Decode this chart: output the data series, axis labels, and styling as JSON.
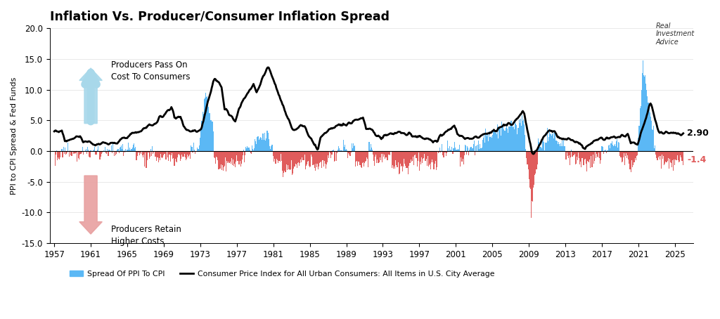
{
  "title": "Inflation Vs. Producer/Consumer Inflation Spread",
  "ylabel": "PPI to CPI Spread & Fed Funds",
  "xlim_start": 1957,
  "xlim_end": 2027,
  "ylim_min": -15.0,
  "ylim_max": 20.0,
  "yticks": [
    -15.0,
    -10.0,
    -5.0,
    0.0,
    5.0,
    10.0,
    15.0,
    20.0
  ],
  "xticks": [
    1957,
    1961,
    1965,
    1969,
    1973,
    1977,
    1981,
    1985,
    1989,
    1993,
    1997,
    2001,
    2005,
    2009,
    2013,
    2017,
    2021,
    2025
  ],
  "legend_spread_label": "Spread Of PPI To CPI",
  "legend_cpi_label": "Consumer Price Index for All Urban Consumers: All Items in U.S. City Average",
  "bar_color_pos": "#5bb8f5",
  "bar_color_neg": "#e05c5c",
  "line_color": "#000000",
  "annotation_290": "2.90",
  "annotation_neg14": "-1.4",
  "arrow_up_color": "#a8d8ea",
  "arrow_down_color": "#e8a0a0",
  "text_pass_on": "Producers Pass On\nCost To Consumers",
  "text_retain": "Producers Retain\nHigher Costs",
  "background_color": "#ffffff",
  "logo_text": "Real\nInvestment\nAdvice"
}
